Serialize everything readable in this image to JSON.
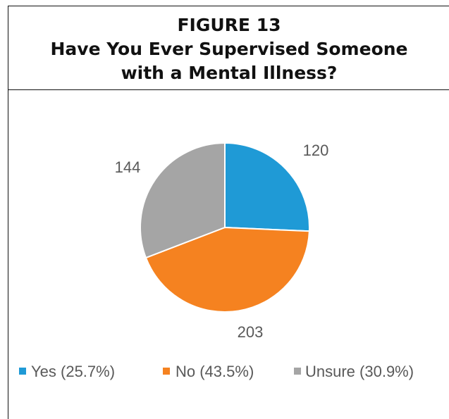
{
  "figure": {
    "label": "FIGURE 13",
    "title_line1": "Have You Ever Supervised Someone",
    "title_line2": "with a Mental Illness?"
  },
  "chart_data": {
    "type": "pie",
    "title": "Have You Ever Supervised Someone with a Mental Illness?",
    "start_angle_deg": 0,
    "direction": "clockwise",
    "slices": [
      {
        "label": "Yes (25.7%)",
        "value": 120,
        "data_label": "120",
        "color": "#1f9ad6"
      },
      {
        "label": "No (43.5%)",
        "value": 203,
        "data_label": "203",
        "color": "#f58220"
      },
      {
        "label": "Unsure (30.9%)",
        "value": 144,
        "data_label": "144",
        "color": "#a5a5a5"
      }
    ],
    "legend_position": "bottom"
  }
}
